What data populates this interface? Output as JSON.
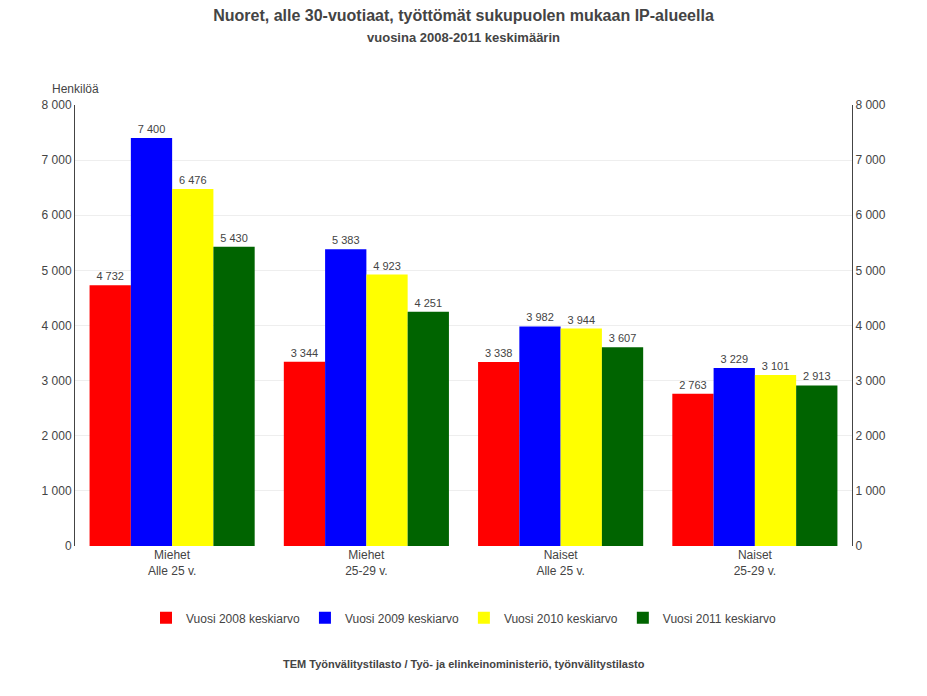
{
  "chart_data": {
    "type": "bar",
    "title": "Nuoret, alle 30-vuotiaat, työttömät sukupuolen mukaan IP-alueella",
    "subtitle": "vuosina 2008-2011 keskimäärin",
    "ylabel": "Henkilöä",
    "source": "TEM Työnvälitystilasto / Työ- ja elinkeinoministeriö, työnvälitystilasto",
    "categories": [
      "Miehet\nAlle 25 v.",
      "Miehet\n25-29 v.",
      "Naiset\nAlle 25 v.",
      "Naiset\n25-29 v."
    ],
    "series": [
      {
        "name": "Vuosi 2008 keskiarvo",
        "color": "#ff0000",
        "values": [
          4732,
          3344,
          3338,
          2763
        ],
        "value_labels": [
          "4 732",
          "3 344",
          "3 338",
          "2 763"
        ]
      },
      {
        "name": "Vuosi 2009 keskiarvo",
        "color": "#0000ff",
        "values": [
          7400,
          5383,
          3982,
          3229
        ],
        "value_labels": [
          "7 400",
          "5 383",
          "3 982",
          "3 229"
        ]
      },
      {
        "name": "Vuosi 2010 keskiarvo",
        "color": "#ffff00",
        "values": [
          6476,
          4923,
          3944,
          3101
        ],
        "value_labels": [
          "6 476",
          "4 923",
          "3 944",
          "3 101"
        ]
      },
      {
        "name": "Vuosi 2011 keskiarvo",
        "color": "#006400",
        "values": [
          5430,
          4251,
          3607,
          2913
        ],
        "value_labels": [
          "5 430",
          "4 251",
          "3 607",
          "2 913"
        ]
      }
    ],
    "ylim": [
      0,
      8000
    ],
    "yticks": [
      0,
      {
        "value": 1000,
        "label": "1 000"
      },
      {
        "value": 2000,
        "label": "2 000"
      },
      {
        "value": 3000,
        "label": "3 000"
      },
      {
        "value": 4000,
        "label": "4 000"
      },
      {
        "value": 5000,
        "label": "5 000"
      },
      {
        "value": 6000,
        "label": "6 000"
      },
      {
        "value": 7000,
        "label": "7 000"
      },
      {
        "value": 8000,
        "label": "8 000"
      }
    ],
    "y2lim": [
      0,
      8000
    ],
    "y2ticks": [
      0,
      {
        "value": 1000,
        "label": "1 000"
      },
      {
        "value": 2000,
        "label": "2 000"
      },
      {
        "value": 3000,
        "label": "3 000"
      },
      {
        "value": 4000,
        "label": "4 000"
      },
      {
        "value": 5000,
        "label": "5 000"
      },
      {
        "value": 6000,
        "label": "6 000"
      },
      {
        "value": 7000,
        "label": "7 000"
      },
      {
        "value": 8000,
        "label": "8 000"
      }
    ],
    "grid": true,
    "legend": "bottom",
    "data_labels": true
  }
}
